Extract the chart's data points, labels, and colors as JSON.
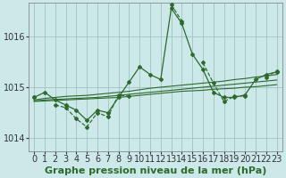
{
  "xlabel": "Graphe pression niveau de la mer (hPa)",
  "background_color": "#cce8e8",
  "line_color": "#2d6a2d",
  "grid_color": "#99bbbb",
  "ylim": [
    1013.75,
    1016.65
  ],
  "xlim": [
    -0.5,
    23.5
  ],
  "yticks": [
    1014,
    1015,
    1016
  ],
  "xticks": [
    0,
    1,
    2,
    3,
    4,
    5,
    6,
    7,
    8,
    9,
    10,
    11,
    12,
    13,
    14,
    15,
    16,
    17,
    18,
    19,
    20,
    21,
    22,
    23
  ],
  "series_main": [
    1014.8,
    1014.9,
    1014.75,
    1014.65,
    1014.55,
    1014.35,
    1014.55,
    1014.5,
    1014.8,
    1015.1,
    1015.4,
    1015.25,
    1015.15,
    1016.55,
    1016.25,
    1015.65,
    1015.35,
    1014.9,
    1014.8,
    1014.8,
    1014.85,
    1015.15,
    1015.25,
    1015.3
  ],
  "series_trend1": [
    1014.75,
    1014.78,
    1014.8,
    1014.82,
    1014.83,
    1014.84,
    1014.86,
    1014.88,
    1014.9,
    1014.92,
    1014.95,
    1014.98,
    1015.0,
    1015.02,
    1015.04,
    1015.06,
    1015.08,
    1015.1,
    1015.12,
    1015.15,
    1015.17,
    1015.2,
    1015.22,
    1015.25
  ],
  "series_trend2": [
    1014.73,
    1014.75,
    1014.76,
    1014.77,
    1014.78,
    1014.79,
    1014.8,
    1014.82,
    1014.84,
    1014.86,
    1014.88,
    1014.9,
    1014.92,
    1014.94,
    1014.96,
    1014.98,
    1015.0,
    1015.02,
    1015.04,
    1015.06,
    1015.08,
    1015.1,
    1015.12,
    1015.14
  ],
  "series_trend3": [
    1014.72,
    1014.73,
    1014.74,
    1014.75,
    1014.76,
    1014.77,
    1014.78,
    1014.79,
    1014.8,
    1014.82,
    1014.84,
    1014.86,
    1014.88,
    1014.9,
    1014.92,
    1014.93,
    1014.94,
    1014.96,
    1014.97,
    1014.98,
    1015.0,
    1015.01,
    1015.03,
    1015.05
  ],
  "series_dashed": [
    1014.8,
    null,
    1014.65,
    1014.6,
    1014.38,
    1014.22,
    1014.5,
    1014.42,
    1014.85,
    1014.82,
    null,
    null,
    null,
    1016.62,
    1016.3,
    null,
    1015.48,
    1015.08,
    1014.72,
    1014.82,
    1014.83,
    null,
    1015.2,
    1015.32
  ],
  "fontsize_xlabel": 8,
  "fontsize_tick": 7
}
